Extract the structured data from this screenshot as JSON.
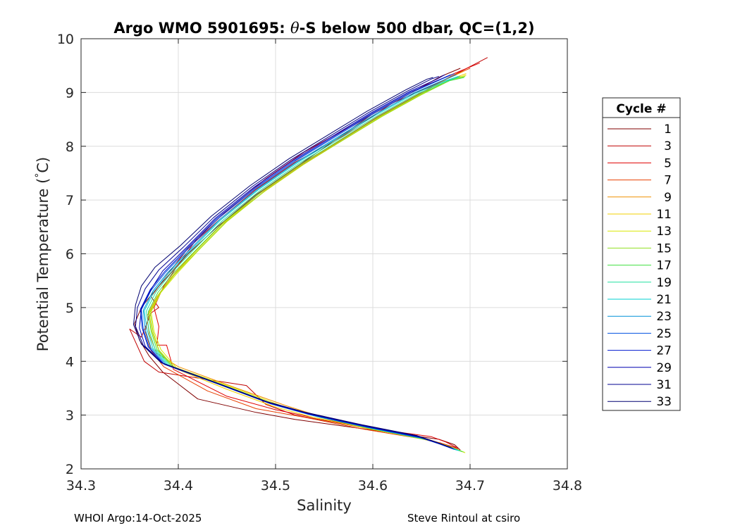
{
  "chart_data": {
    "type": "line",
    "title_main": "Argo WMO 5901695: ",
    "title_theta": "θ",
    "title_rest": "-S below 500 dbar,  QC=(1,2)",
    "xlabel": "Salinity",
    "ylabel": "Potential Temperature (",
    "ylabel_degree": "°",
    "ylabel_unit": "C)",
    "xlim": [
      34.3,
      34.8
    ],
    "ylim": [
      2,
      10
    ],
    "xticks": [
      "34.3",
      "34.4",
      "34.5",
      "34.6",
      "34.7",
      "34.8"
    ],
    "yticks": [
      "2",
      "3",
      "4",
      "5",
      "6",
      "7",
      "8",
      "9",
      "10"
    ],
    "grid": true,
    "legend_position": "right",
    "legend_title": "Cycle #",
    "footer_left": "WHOI Argo:14-Oct-2025",
    "footer_right": "Steve Rintoul at csiro",
    "series": [
      {
        "name": "1",
        "color": "#800000",
        "x": [
          34.69,
          34.684,
          34.668,
          34.6,
          34.52,
          34.48,
          34.42,
          34.384,
          34.37,
          34.36,
          34.355,
          34.362,
          34.375,
          34.39,
          34.41,
          34.44,
          34.48,
          34.52,
          34.56,
          34.6,
          34.64,
          34.67,
          34.69
        ],
        "y": [
          2.35,
          2.45,
          2.55,
          2.72,
          2.92,
          3.05,
          3.3,
          3.8,
          4.1,
          4.4,
          4.7,
          5.0,
          5.3,
          5.6,
          6.0,
          6.5,
          7.1,
          7.6,
          8.1,
          8.6,
          9.0,
          9.3,
          9.45
        ]
      },
      {
        "name": "3",
        "color": "#c00000",
        "x": [
          34.688,
          34.67,
          34.64,
          34.58,
          34.52,
          34.49,
          34.47,
          34.38,
          34.365,
          34.35,
          34.362,
          34.372,
          34.38,
          34.372,
          34.388,
          34.41,
          34.44,
          34.48,
          34.52,
          34.57,
          34.62,
          34.67,
          34.718
        ],
        "y": [
          2.38,
          2.48,
          2.6,
          2.8,
          3.0,
          3.2,
          3.55,
          3.8,
          4.0,
          4.6,
          4.45,
          4.9,
          5.0,
          5.2,
          5.6,
          6.1,
          6.6,
          7.2,
          7.7,
          8.2,
          8.8,
          9.2,
          9.65
        ]
      },
      {
        "name": "5",
        "color": "#e00000",
        "x": [
          34.686,
          34.675,
          34.66,
          34.6,
          34.54,
          34.5,
          34.45,
          34.395,
          34.388,
          34.378,
          34.38,
          34.375,
          34.385,
          34.4,
          34.42,
          34.45,
          34.49,
          34.53,
          34.57,
          34.61,
          34.65,
          34.69,
          34.71
        ],
        "y": [
          2.4,
          2.5,
          2.6,
          2.75,
          2.95,
          3.1,
          3.35,
          3.85,
          4.3,
          4.3,
          4.65,
          5.0,
          5.4,
          5.8,
          6.3,
          6.8,
          7.4,
          7.9,
          8.3,
          8.7,
          9.1,
          9.4,
          9.55
        ]
      },
      {
        "name": "7",
        "color": "#e84000",
        "x": [
          34.688,
          34.672,
          34.65,
          34.59,
          34.53,
          34.48,
          34.43,
          34.385,
          34.372,
          34.366,
          34.37,
          34.38,
          34.395,
          34.415,
          34.445,
          34.485,
          34.525,
          34.565,
          34.605,
          34.645,
          34.68,
          34.7
        ],
        "y": [
          2.36,
          2.46,
          2.56,
          2.74,
          2.96,
          3.12,
          3.45,
          3.9,
          4.2,
          4.55,
          4.9,
          5.25,
          5.6,
          6.0,
          6.55,
          7.15,
          7.65,
          8.1,
          8.55,
          8.95,
          9.3,
          9.45
        ]
      },
      {
        "name": "9",
        "color": "#f09000",
        "x": [
          34.69,
          34.676,
          34.655,
          34.6,
          34.545,
          34.51,
          34.46,
          34.4,
          34.378,
          34.37,
          34.368,
          34.378,
          34.392,
          34.412,
          34.442,
          34.482,
          34.522,
          34.562,
          34.602,
          34.642,
          34.676,
          34.694
        ],
        "y": [
          2.34,
          2.44,
          2.56,
          2.75,
          2.98,
          3.18,
          3.5,
          3.9,
          4.15,
          4.5,
          4.85,
          5.2,
          5.55,
          5.95,
          6.5,
          7.1,
          7.6,
          8.05,
          8.5,
          8.9,
          9.25,
          9.4
        ]
      },
      {
        "name": "11",
        "color": "#f0d000",
        "x": [
          34.692,
          34.678,
          34.658,
          34.6,
          34.54,
          34.5,
          34.45,
          34.395,
          34.38,
          34.373,
          34.37,
          34.38,
          34.395,
          34.418,
          34.448,
          34.488,
          34.528,
          34.568,
          34.608,
          34.648,
          34.68,
          34.696
        ],
        "y": [
          2.32,
          2.42,
          2.54,
          2.73,
          2.95,
          3.15,
          3.48,
          3.88,
          4.2,
          4.55,
          4.9,
          5.25,
          5.6,
          6.05,
          6.6,
          7.15,
          7.65,
          8.1,
          8.55,
          8.95,
          9.25,
          9.35
        ]
      },
      {
        "name": "13",
        "color": "#d8e800",
        "x": [
          34.695,
          34.68,
          34.66,
          34.605,
          34.548,
          34.508,
          34.458,
          34.398,
          34.382,
          34.375,
          34.372,
          34.382,
          34.398,
          34.42,
          34.45,
          34.49,
          34.53,
          34.57,
          34.61,
          34.65,
          34.682,
          34.696
        ],
        "y": [
          2.3,
          2.4,
          2.52,
          2.72,
          2.95,
          3.16,
          3.5,
          3.88,
          4.22,
          4.56,
          4.92,
          5.28,
          5.62,
          6.05,
          6.6,
          7.18,
          7.68,
          8.12,
          8.56,
          8.96,
          9.25,
          9.32
        ]
      },
      {
        "name": "15",
        "color": "#90e020",
        "x": [
          34.694,
          34.679,
          34.659,
          34.603,
          34.545,
          34.505,
          34.455,
          34.396,
          34.38,
          34.374,
          34.371,
          34.381,
          34.396,
          34.419,
          34.449,
          34.489,
          34.529,
          34.569,
          34.609,
          34.649,
          34.681,
          34.695
        ],
        "y": [
          2.31,
          2.41,
          2.53,
          2.73,
          2.96,
          3.16,
          3.5,
          3.89,
          4.21,
          4.55,
          4.91,
          5.27,
          5.61,
          6.04,
          6.59,
          7.17,
          7.67,
          8.11,
          8.55,
          8.95,
          9.24,
          9.3
        ]
      },
      {
        "name": "17",
        "color": "#40e040",
        "x": [
          34.692,
          34.677,
          34.657,
          34.601,
          34.543,
          34.503,
          34.453,
          34.394,
          34.378,
          34.372,
          34.369,
          34.379,
          34.394,
          34.417,
          34.447,
          34.487,
          34.527,
          34.567,
          34.607,
          34.647,
          34.679,
          34.694
        ],
        "y": [
          2.32,
          2.42,
          2.54,
          2.74,
          2.97,
          3.17,
          3.51,
          3.9,
          4.22,
          4.56,
          4.92,
          5.28,
          5.62,
          6.05,
          6.6,
          7.18,
          7.68,
          8.12,
          8.56,
          8.96,
          9.22,
          9.28
        ]
      },
      {
        "name": "19",
        "color": "#20e0a0",
        "x": [
          34.69,
          34.675,
          34.655,
          34.599,
          34.541,
          34.501,
          34.451,
          34.392,
          34.376,
          34.37,
          34.367,
          34.377,
          34.392,
          34.415,
          34.445,
          34.485,
          34.525,
          34.565,
          34.605,
          34.645,
          34.677,
          34.69
        ],
        "y": [
          2.33,
          2.43,
          2.55,
          2.75,
          2.98,
          3.18,
          3.52,
          3.91,
          4.23,
          4.57,
          4.93,
          5.29,
          5.63,
          6.06,
          6.61,
          7.19,
          7.69,
          8.13,
          8.57,
          8.97,
          9.22,
          9.3
        ]
      },
      {
        "name": "21",
        "color": "#00d0d0",
        "x": [
          34.688,
          34.673,
          34.653,
          34.597,
          34.539,
          34.499,
          34.449,
          34.39,
          34.374,
          34.368,
          34.365,
          34.375,
          34.39,
          34.413,
          34.443,
          34.483,
          34.523,
          34.563,
          34.603,
          34.643,
          34.675,
          34.688
        ],
        "y": [
          2.34,
          2.44,
          2.56,
          2.76,
          2.99,
          3.19,
          3.53,
          3.92,
          4.24,
          4.58,
          4.94,
          5.3,
          5.64,
          6.07,
          6.62,
          7.2,
          7.7,
          8.14,
          8.58,
          8.98,
          9.22,
          9.3
        ]
      },
      {
        "name": "23",
        "color": "#0090d8",
        "x": [
          34.686,
          34.671,
          34.651,
          34.595,
          34.537,
          34.497,
          34.447,
          34.388,
          34.372,
          34.366,
          34.364,
          34.374,
          34.389,
          34.412,
          34.442,
          34.482,
          34.522,
          34.562,
          34.602,
          34.642,
          34.674,
          34.686
        ],
        "y": [
          2.35,
          2.45,
          2.57,
          2.77,
          3.0,
          3.2,
          3.54,
          3.93,
          4.25,
          4.59,
          4.95,
          5.31,
          5.65,
          6.08,
          6.63,
          7.21,
          7.71,
          8.15,
          8.59,
          8.99,
          9.24,
          9.33
        ]
      },
      {
        "name": "25",
        "color": "#0050e0",
        "x": [
          34.684,
          34.669,
          34.649,
          34.593,
          34.535,
          34.495,
          34.445,
          34.386,
          34.37,
          34.364,
          34.362,
          34.372,
          34.387,
          34.41,
          34.44,
          34.48,
          34.52,
          34.56,
          34.6,
          34.64,
          34.672,
          34.684
        ],
        "y": [
          2.36,
          2.46,
          2.58,
          2.78,
          3.01,
          3.21,
          3.55,
          3.94,
          4.26,
          4.6,
          4.96,
          5.32,
          5.66,
          6.09,
          6.64,
          7.22,
          7.72,
          8.16,
          8.6,
          9.0,
          9.26,
          9.35
        ]
      },
      {
        "name": "27",
        "color": "#0018d0",
        "x": [
          34.683,
          34.668,
          34.648,
          34.592,
          34.534,
          34.494,
          34.444,
          34.385,
          34.369,
          34.363,
          34.361,
          34.371,
          34.386,
          34.409,
          34.439,
          34.479,
          34.519,
          34.559,
          34.599,
          34.639,
          34.67,
          34.68
        ],
        "y": [
          2.37,
          2.47,
          2.59,
          2.79,
          3.02,
          3.22,
          3.56,
          3.95,
          4.27,
          4.61,
          4.97,
          5.33,
          5.67,
          6.1,
          6.65,
          7.23,
          7.73,
          8.17,
          8.61,
          9.01,
          9.25,
          9.33
        ]
      },
      {
        "name": "29",
        "color": "#0000b0",
        "x": [
          34.682,
          34.667,
          34.647,
          34.591,
          34.533,
          34.493,
          34.443,
          34.384,
          34.366,
          34.36,
          34.362,
          34.372,
          34.384,
          34.408,
          34.438,
          34.478,
          34.518,
          34.558,
          34.598,
          34.638,
          34.666,
          34.674
        ],
        "y": [
          2.38,
          2.48,
          2.6,
          2.8,
          3.03,
          3.23,
          3.57,
          3.96,
          4.28,
          4.62,
          4.98,
          5.34,
          5.68,
          6.11,
          6.66,
          7.24,
          7.74,
          8.18,
          8.62,
          9.02,
          9.25,
          9.33
        ]
      },
      {
        "name": "31",
        "color": "#000090",
        "x": [
          34.681,
          34.666,
          34.646,
          34.59,
          34.532,
          34.492,
          34.442,
          34.383,
          34.364,
          34.356,
          34.358,
          34.366,
          34.38,
          34.405,
          34.436,
          34.476,
          34.516,
          34.556,
          34.596,
          34.636,
          34.66,
          34.668
        ],
        "y": [
          2.39,
          2.49,
          2.61,
          2.81,
          3.04,
          3.24,
          3.58,
          3.97,
          4.3,
          4.65,
          5.0,
          5.35,
          5.7,
          6.12,
          6.67,
          7.25,
          7.75,
          8.19,
          8.63,
          9.03,
          9.25,
          9.3
        ]
      },
      {
        "name": "33",
        "color": "#000070",
        "x": [
          34.68,
          34.665,
          34.645,
          34.589,
          34.531,
          34.491,
          34.441,
          34.382,
          34.362,
          34.354,
          34.356,
          34.362,
          34.376,
          34.402,
          34.434,
          34.474,
          34.514,
          34.554,
          34.594,
          34.634,
          34.656,
          34.662
        ],
        "y": [
          2.4,
          2.5,
          2.62,
          2.82,
          3.05,
          3.25,
          3.59,
          3.98,
          4.32,
          4.68,
          5.05,
          5.4,
          5.75,
          6.15,
          6.7,
          7.27,
          7.77,
          8.21,
          8.65,
          9.05,
          9.25,
          9.28
        ]
      }
    ]
  }
}
